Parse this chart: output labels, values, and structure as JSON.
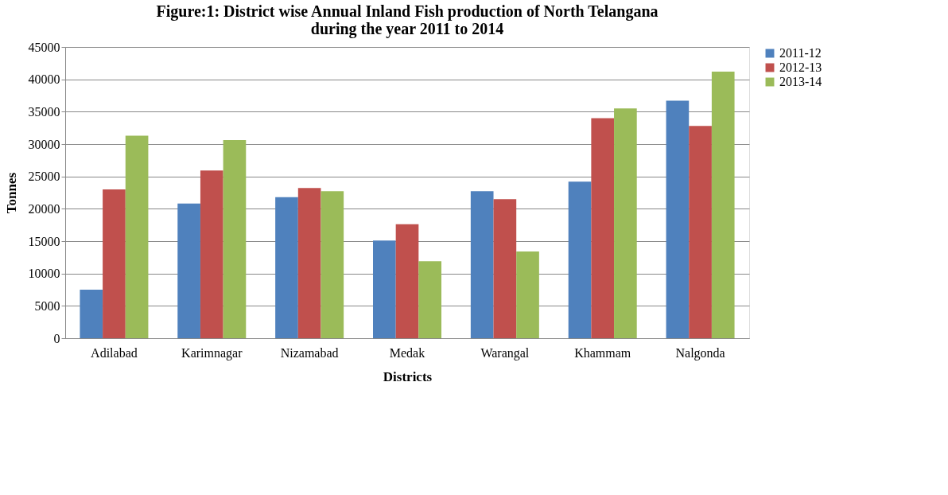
{
  "chart_data": {
    "type": "bar",
    "title": [
      "Figure:1: District wise Annual Inland Fish production of North Telangana",
      "during the year 2011 to 2014"
    ],
    "xlabel": "Districts",
    "ylabel": "Tonnes",
    "categories": [
      "Adilabad",
      "Karimnagar",
      "Nizamabad",
      "Medak",
      "Warangal",
      "Khammam",
      "Nalgonda"
    ],
    "series": [
      {
        "name": "2011-12",
        "color": "#4f81bd",
        "values": [
          7500,
          20800,
          21800,
          15100,
          22700,
          24200,
          36700
        ]
      },
      {
        "name": "2012-13",
        "color": "#c0504d",
        "values": [
          23000,
          25900,
          23200,
          17600,
          21500,
          34000,
          32800
        ]
      },
      {
        "name": "2013-14",
        "color": "#9bbb59",
        "values": [
          31300,
          30600,
          22700,
          11900,
          13400,
          35500,
          41200
        ]
      }
    ],
    "ylim": [
      0,
      45000
    ],
    "yticks": [
      0,
      5000,
      10000,
      15000,
      20000,
      25000,
      30000,
      35000,
      40000,
      45000
    ],
    "grid": "y",
    "legend": "right"
  }
}
